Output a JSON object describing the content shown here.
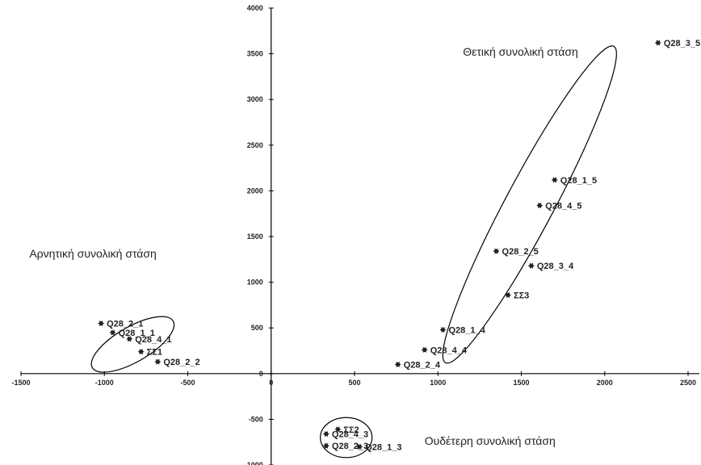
{
  "chart_data": {
    "type": "scatter",
    "title": "",
    "xlabel": "",
    "ylabel": "",
    "xlim": [
      -1500,
      2500
    ],
    "ylim": [
      -1000,
      4000
    ],
    "grid": false,
    "x_ticks": [
      "-1500",
      "-1000",
      "-500",
      "0",
      "500",
      "1000",
      "1500",
      "2000",
      "2500"
    ],
    "y_ticks": [
      "4000",
      "3500",
      "3000",
      "2500",
      "2000",
      "1500",
      "1000",
      "500",
      "0",
      "-500",
      "-1000"
    ],
    "points": [
      {
        "label": "Q28_3_5",
        "x": 2320,
        "y": 3620
      },
      {
        "label": "Q28_1_5",
        "x": 1700,
        "y": 2120
      },
      {
        "label": "Q28_4_5",
        "x": 1610,
        "y": 1840
      },
      {
        "label": "Q28_2_5",
        "x": 1350,
        "y": 1340
      },
      {
        "label": "Q28_3_4",
        "x": 1560,
        "y": 1180
      },
      {
        "label": "ΣΣ3",
        "x": 1420,
        "y": 860
      },
      {
        "label": "Q28_1_4",
        "x": 1030,
        "y": 480
      },
      {
        "label": "Q28_4_4",
        "x": 920,
        "y": 260
      },
      {
        "label": "Q28_2_4",
        "x": 760,
        "y": 100
      },
      {
        "label": "Q28_2_1",
        "x": -1020,
        "y": 550
      },
      {
        "label": "Q28_1_1",
        "x": -950,
        "y": 450
      },
      {
        "label": "Q28_4_1",
        "x": -850,
        "y": 380
      },
      {
        "label": "ΣΣ1",
        "x": -780,
        "y": 240
      },
      {
        "label": "Q28_2_2",
        "x": -680,
        "y": 130
      },
      {
        "label": "ΣΣ2",
        "x": 400,
        "y": -610
      },
      {
        "label": "Q28_4_3",
        "x": 330,
        "y": -660
      },
      {
        "label": "Q28_2_3",
        "x": 330,
        "y": -790
      },
      {
        "label": "Q28_1_3",
        "x": 530,
        "y": -800
      }
    ],
    "regions": [
      {
        "label": "Θετική συνολική στάση",
        "cx": 1550,
        "cy": 1850,
        "rx": 2150,
        "ry": 290,
        "angle_deg": 62
      },
      {
        "label": "Αρνητική συνολική στάση",
        "cx": -830,
        "cy": 320,
        "rx": 560,
        "ry": 210,
        "angle_deg": 30
      },
      {
        "label": "Ουδέτερη συνολική στάση",
        "cx": 450,
        "cy": -700,
        "rx": 310,
        "ry": 240,
        "angle_deg": 0
      }
    ]
  }
}
